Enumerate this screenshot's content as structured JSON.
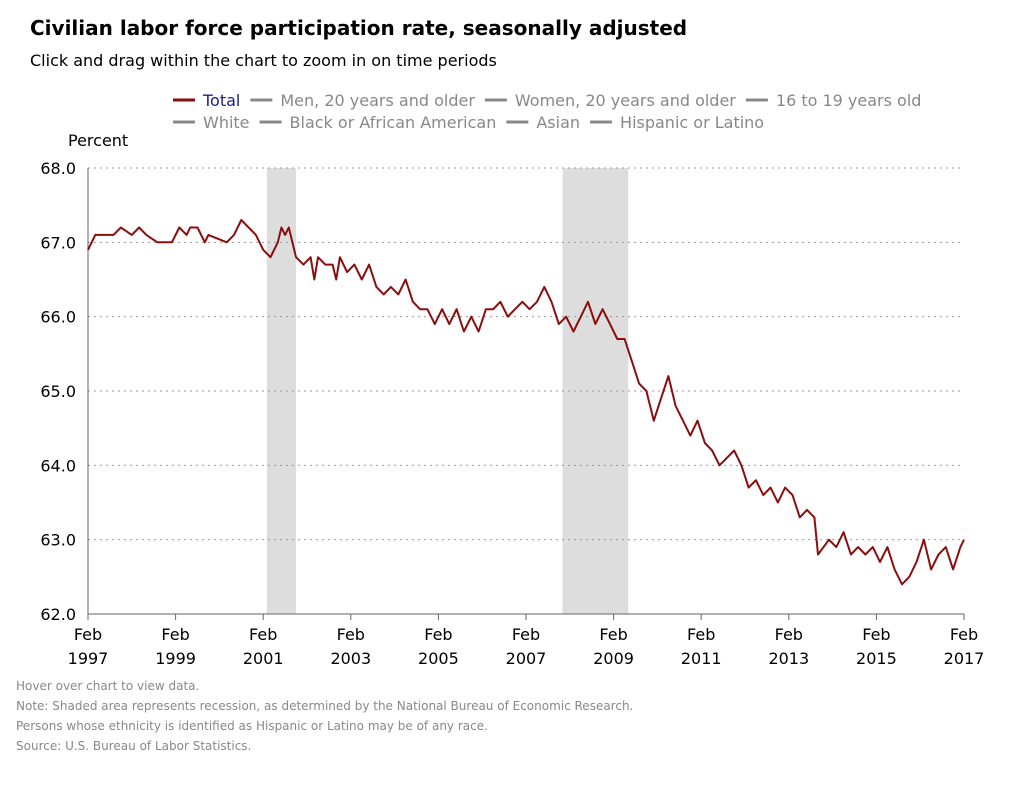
{
  "title": "Civilian labor force participation rate, seasonally adjusted",
  "subtitle": "Click and drag within the chart to zoom in on time periods",
  "notes": [
    "Hover over chart to view data.",
    "Note: Shaded area represents recession, as determined by the National Bureau of Economic Research.",
    "Persons whose ethnicity is identified as Hispanic or Latino may be of any race.",
    "Source: U.S. Bureau of Labor Statistics."
  ],
  "colors": {
    "series": "#8b0e0e",
    "active_legend": "#1a1a8c",
    "inactive_legend": "#888888",
    "recession": "#dddddd"
  },
  "chart_data": {
    "type": "line",
    "ylabel": "Percent",
    "ylim": [
      62.0,
      68.0
    ],
    "yticks": [
      "62.0",
      "63.0",
      "64.0",
      "65.0",
      "66.0",
      "67.0",
      "68.0"
    ],
    "xlim": [
      "1997-02",
      "2017-02"
    ],
    "xticks": [
      {
        "month": "Feb",
        "year": "1997"
      },
      {
        "month": "Feb",
        "year": "1999"
      },
      {
        "month": "Feb",
        "year": "2001"
      },
      {
        "month": "Feb",
        "year": "2003"
      },
      {
        "month": "Feb",
        "year": "2005"
      },
      {
        "month": "Feb",
        "year": "2007"
      },
      {
        "month": "Feb",
        "year": "2009"
      },
      {
        "month": "Feb",
        "year": "2011"
      },
      {
        "month": "Feb",
        "year": "2013"
      },
      {
        "month": "Feb",
        "year": "2015"
      },
      {
        "month": "Feb",
        "year": "2017"
      }
    ],
    "grid": true,
    "legend_placement": "top",
    "legend": [
      {
        "name": "Total",
        "active": true
      },
      {
        "name": "Men, 20 years and older",
        "active": false
      },
      {
        "name": "Women, 20 years and older",
        "active": false
      },
      {
        "name": "16 to 19 years old",
        "active": false
      },
      {
        "name": "White",
        "active": false
      },
      {
        "name": "Black or African American",
        "active": false
      },
      {
        "name": "Asian",
        "active": false
      },
      {
        "name": "Hispanic or Latino",
        "active": false
      }
    ],
    "recessions": [
      [
        "2001-03",
        "2001-11"
      ],
      [
        "2007-12",
        "2009-06"
      ]
    ],
    "series": [
      {
        "name": "Total",
        "points": [
          [
            "1997-02",
            66.9
          ],
          [
            "1997-04",
            67.1
          ],
          [
            "1997-09",
            67.1
          ],
          [
            "1997-11",
            67.2
          ],
          [
            "1998-02",
            67.1
          ],
          [
            "1998-04",
            67.2
          ],
          [
            "1998-06",
            67.1
          ],
          [
            "1998-09",
            67.0
          ],
          [
            "1999-01",
            67.0
          ],
          [
            "1999-03",
            67.2
          ],
          [
            "1999-05",
            67.1
          ],
          [
            "1999-06",
            67.2
          ],
          [
            "1999-08",
            67.2
          ],
          [
            "1999-10",
            67.0
          ],
          [
            "1999-11",
            67.1
          ],
          [
            "2000-04",
            67.0
          ],
          [
            "2000-06",
            67.1
          ],
          [
            "2000-08",
            67.3
          ],
          [
            "2000-12",
            67.1
          ],
          [
            "2001-02",
            66.9
          ],
          [
            "2001-04",
            66.8
          ],
          [
            "2001-06",
            67.0
          ],
          [
            "2001-07",
            67.2
          ],
          [
            "2001-08",
            67.1
          ],
          [
            "2001-09",
            67.2
          ],
          [
            "2001-11",
            66.8
          ],
          [
            "2002-01",
            66.7
          ],
          [
            "2002-03",
            66.8
          ],
          [
            "2002-04",
            66.5
          ],
          [
            "2002-05",
            66.8
          ],
          [
            "2002-07",
            66.7
          ],
          [
            "2002-09",
            66.7
          ],
          [
            "2002-10",
            66.5
          ],
          [
            "2002-11",
            66.8
          ],
          [
            "2003-01",
            66.6
          ],
          [
            "2003-03",
            66.7
          ],
          [
            "2003-05",
            66.5
          ],
          [
            "2003-07",
            66.7
          ],
          [
            "2003-09",
            66.4
          ],
          [
            "2003-11",
            66.3
          ],
          [
            "2004-01",
            66.4
          ],
          [
            "2004-03",
            66.3
          ],
          [
            "2004-05",
            66.5
          ],
          [
            "2004-07",
            66.2
          ],
          [
            "2004-09",
            66.1
          ],
          [
            "2004-11",
            66.1
          ],
          [
            "2005-01",
            65.9
          ],
          [
            "2005-03",
            66.1
          ],
          [
            "2005-05",
            65.9
          ],
          [
            "2005-07",
            66.1
          ],
          [
            "2005-09",
            65.8
          ],
          [
            "2005-11",
            66.0
          ],
          [
            "2006-01",
            65.8
          ],
          [
            "2006-03",
            66.1
          ],
          [
            "2006-05",
            66.1
          ],
          [
            "2006-07",
            66.2
          ],
          [
            "2006-09",
            66.0
          ],
          [
            "2006-11",
            66.1
          ],
          [
            "2007-01",
            66.2
          ],
          [
            "2007-03",
            66.1
          ],
          [
            "2007-05",
            66.2
          ],
          [
            "2007-07",
            66.4
          ],
          [
            "2007-09",
            66.2
          ],
          [
            "2007-11",
            65.9
          ],
          [
            "2008-01",
            66.0
          ],
          [
            "2008-03",
            65.8
          ],
          [
            "2008-05",
            66.0
          ],
          [
            "2008-07",
            66.2
          ],
          [
            "2008-09",
            65.9
          ],
          [
            "2008-11",
            66.1
          ],
          [
            "2009-01",
            65.9
          ],
          [
            "2009-03",
            65.7
          ],
          [
            "2009-05",
            65.7
          ],
          [
            "2009-07",
            65.4
          ],
          [
            "2009-09",
            65.1
          ],
          [
            "2009-11",
            65.0
          ],
          [
            "2010-01",
            64.6
          ],
          [
            "2010-03",
            64.9
          ],
          [
            "2010-05",
            65.2
          ],
          [
            "2010-07",
            64.8
          ],
          [
            "2010-09",
            64.6
          ],
          [
            "2010-11",
            64.4
          ],
          [
            "2011-01",
            64.6
          ],
          [
            "2011-03",
            64.3
          ],
          [
            "2011-05",
            64.2
          ],
          [
            "2011-07",
            64.0
          ],
          [
            "2011-09",
            64.1
          ],
          [
            "2011-11",
            64.2
          ],
          [
            "2012-01",
            64.0
          ],
          [
            "2012-03",
            63.7
          ],
          [
            "2012-05",
            63.8
          ],
          [
            "2012-07",
            63.6
          ],
          [
            "2012-09",
            63.7
          ],
          [
            "2012-11",
            63.5
          ],
          [
            "2013-01",
            63.7
          ],
          [
            "2013-03",
            63.6
          ],
          [
            "2013-05",
            63.3
          ],
          [
            "2013-07",
            63.4
          ],
          [
            "2013-09",
            63.3
          ],
          [
            "2013-10",
            62.8
          ],
          [
            "2014-01",
            63.0
          ],
          [
            "2014-03",
            62.9
          ],
          [
            "2014-05",
            63.1
          ],
          [
            "2014-07",
            62.8
          ],
          [
            "2014-09",
            62.9
          ],
          [
            "2014-11",
            62.8
          ],
          [
            "2015-01",
            62.9
          ],
          [
            "2015-03",
            62.7
          ],
          [
            "2015-05",
            62.9
          ],
          [
            "2015-07",
            62.6
          ],
          [
            "2015-09",
            62.4
          ],
          [
            "2015-11",
            62.5
          ],
          [
            "2016-01",
            62.7
          ],
          [
            "2016-03",
            63.0
          ],
          [
            "2016-05",
            62.6
          ],
          [
            "2016-07",
            62.8
          ],
          [
            "2016-09",
            62.9
          ],
          [
            "2016-11",
            62.6
          ],
          [
            "2017-01",
            62.9
          ],
          [
            "2017-02",
            63.0
          ]
        ]
      }
    ]
  }
}
